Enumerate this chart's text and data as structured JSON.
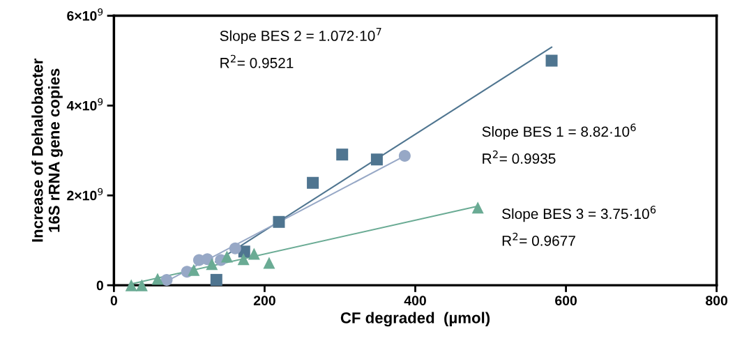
{
  "chart_data": {
    "type": "scatter",
    "xlabel": "CF degraded  (µmol)",
    "ylabel": "Increase of Dehalobacter\n16S rRNA gene copies",
    "xlim": [
      0,
      800
    ],
    "xticks": [
      0,
      200,
      400,
      600,
      800
    ],
    "ylim": [
      0,
      6000000000
    ],
    "yticks": [
      0,
      {
        "value": 2000000000,
        "label": "2×10$^{9}$"
      },
      {
        "value": 4000000000,
        "label": "4×10$^{9}$"
      },
      {
        "value": 6000000000,
        "label": "6×10$^{9}$"
      }
    ],
    "grid": false,
    "legend": false,
    "series": [
      {
        "type": "line",
        "color": "#4f7590",
        "marker": "none",
        "x": [
          135,
          581
        ],
        "values": [
          520000000,
          5300000000
        ]
      },
      {
        "type": "line",
        "color": "#97a8c6",
        "marker": "none",
        "x": [
          70,
          386
        ],
        "values": [
          90000000,
          2880000000
        ]
      },
      {
        "type": "line",
        "color": "#6aab94",
        "marker": "none",
        "x": [
          23,
          483
        ],
        "values": [
          30000000,
          1760000000
        ]
      },
      {
        "color": "#4f7590",
        "marker": "square",
        "x": [
          136,
          173,
          219,
          264,
          303,
          349,
          581
        ],
        "values": [
          120000000,
          750000000,
          1410000000,
          2280000000,
          2910000000,
          2800000000,
          5000000000
        ]
      },
      {
        "color": "#97a8c6",
        "marker": "circle",
        "x": [
          70,
          97,
          113,
          124,
          142,
          161,
          386
        ],
        "values": [
          120000000,
          300000000,
          560000000,
          580000000,
          560000000,
          820000000,
          2880000000
        ]
      },
      {
        "color": "#6aab94",
        "marker": "triangle",
        "x": [
          23,
          37,
          58,
          106,
          130,
          150,
          172,
          186,
          206,
          483
        ],
        "values": [
          0,
          0,
          140000000,
          340000000,
          470000000,
          640000000,
          580000000,
          700000000,
          500000000,
          1730000000
        ]
      }
    ],
    "annotations": [
      "Slope BES 2 = 1.072·10$^{7}$",
      "R$^{2}$= 0.9521",
      "Slope BES 1 = 8.82·10$^{6}$",
      "R$^{2}$= 0.9935",
      "Slope BES 3 = 3.75·10$^{6}$",
      "R$^{2}$= 0.9677"
    ]
  }
}
